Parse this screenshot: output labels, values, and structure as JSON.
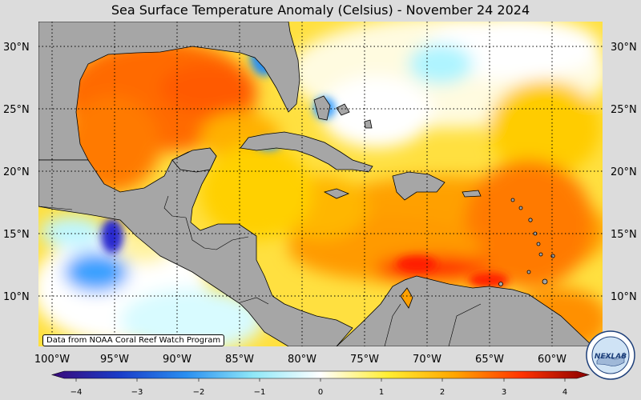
{
  "title": "Sea Surface Temperature Anomaly (Celsius) - November 24 2024",
  "credit": "Data from NOAA Coral Reef Watch Program",
  "logo_text": "NEXLAB",
  "lat_labels": [
    "30°N",
    "25°N",
    "20°N",
    "15°N",
    "10°N"
  ],
  "lon_labels": [
    "100°W",
    "95°W",
    "90°W",
    "85°W",
    "80°W",
    "75°W",
    "70°W",
    "65°W",
    "60°W"
  ],
  "colorbar": {
    "ticks": [
      "−4",
      "−3",
      "−2",
      "−1",
      "0",
      "1",
      "2",
      "3",
      "4"
    ],
    "min": -4,
    "max": 4,
    "stops": [
      "#3a0a7a",
      "#1a3cc8",
      "#2a8ff0",
      "#8fe8f8",
      "#ffffff",
      "#ffee33",
      "#ffa500",
      "#ff3300",
      "#8b0000"
    ]
  },
  "colors": {
    "land": "#a6a6a6",
    "background": "#dcdcdc",
    "warm_strong": "#ff6a00",
    "warm_moderate": "#ffa500",
    "warm_mild": "#ffd700",
    "neutral": "#ffffff",
    "cool_mild": "#9ff0ff",
    "cool_moderate": "#3aa0ff",
    "cool_strong": "#2a2ad0"
  }
}
